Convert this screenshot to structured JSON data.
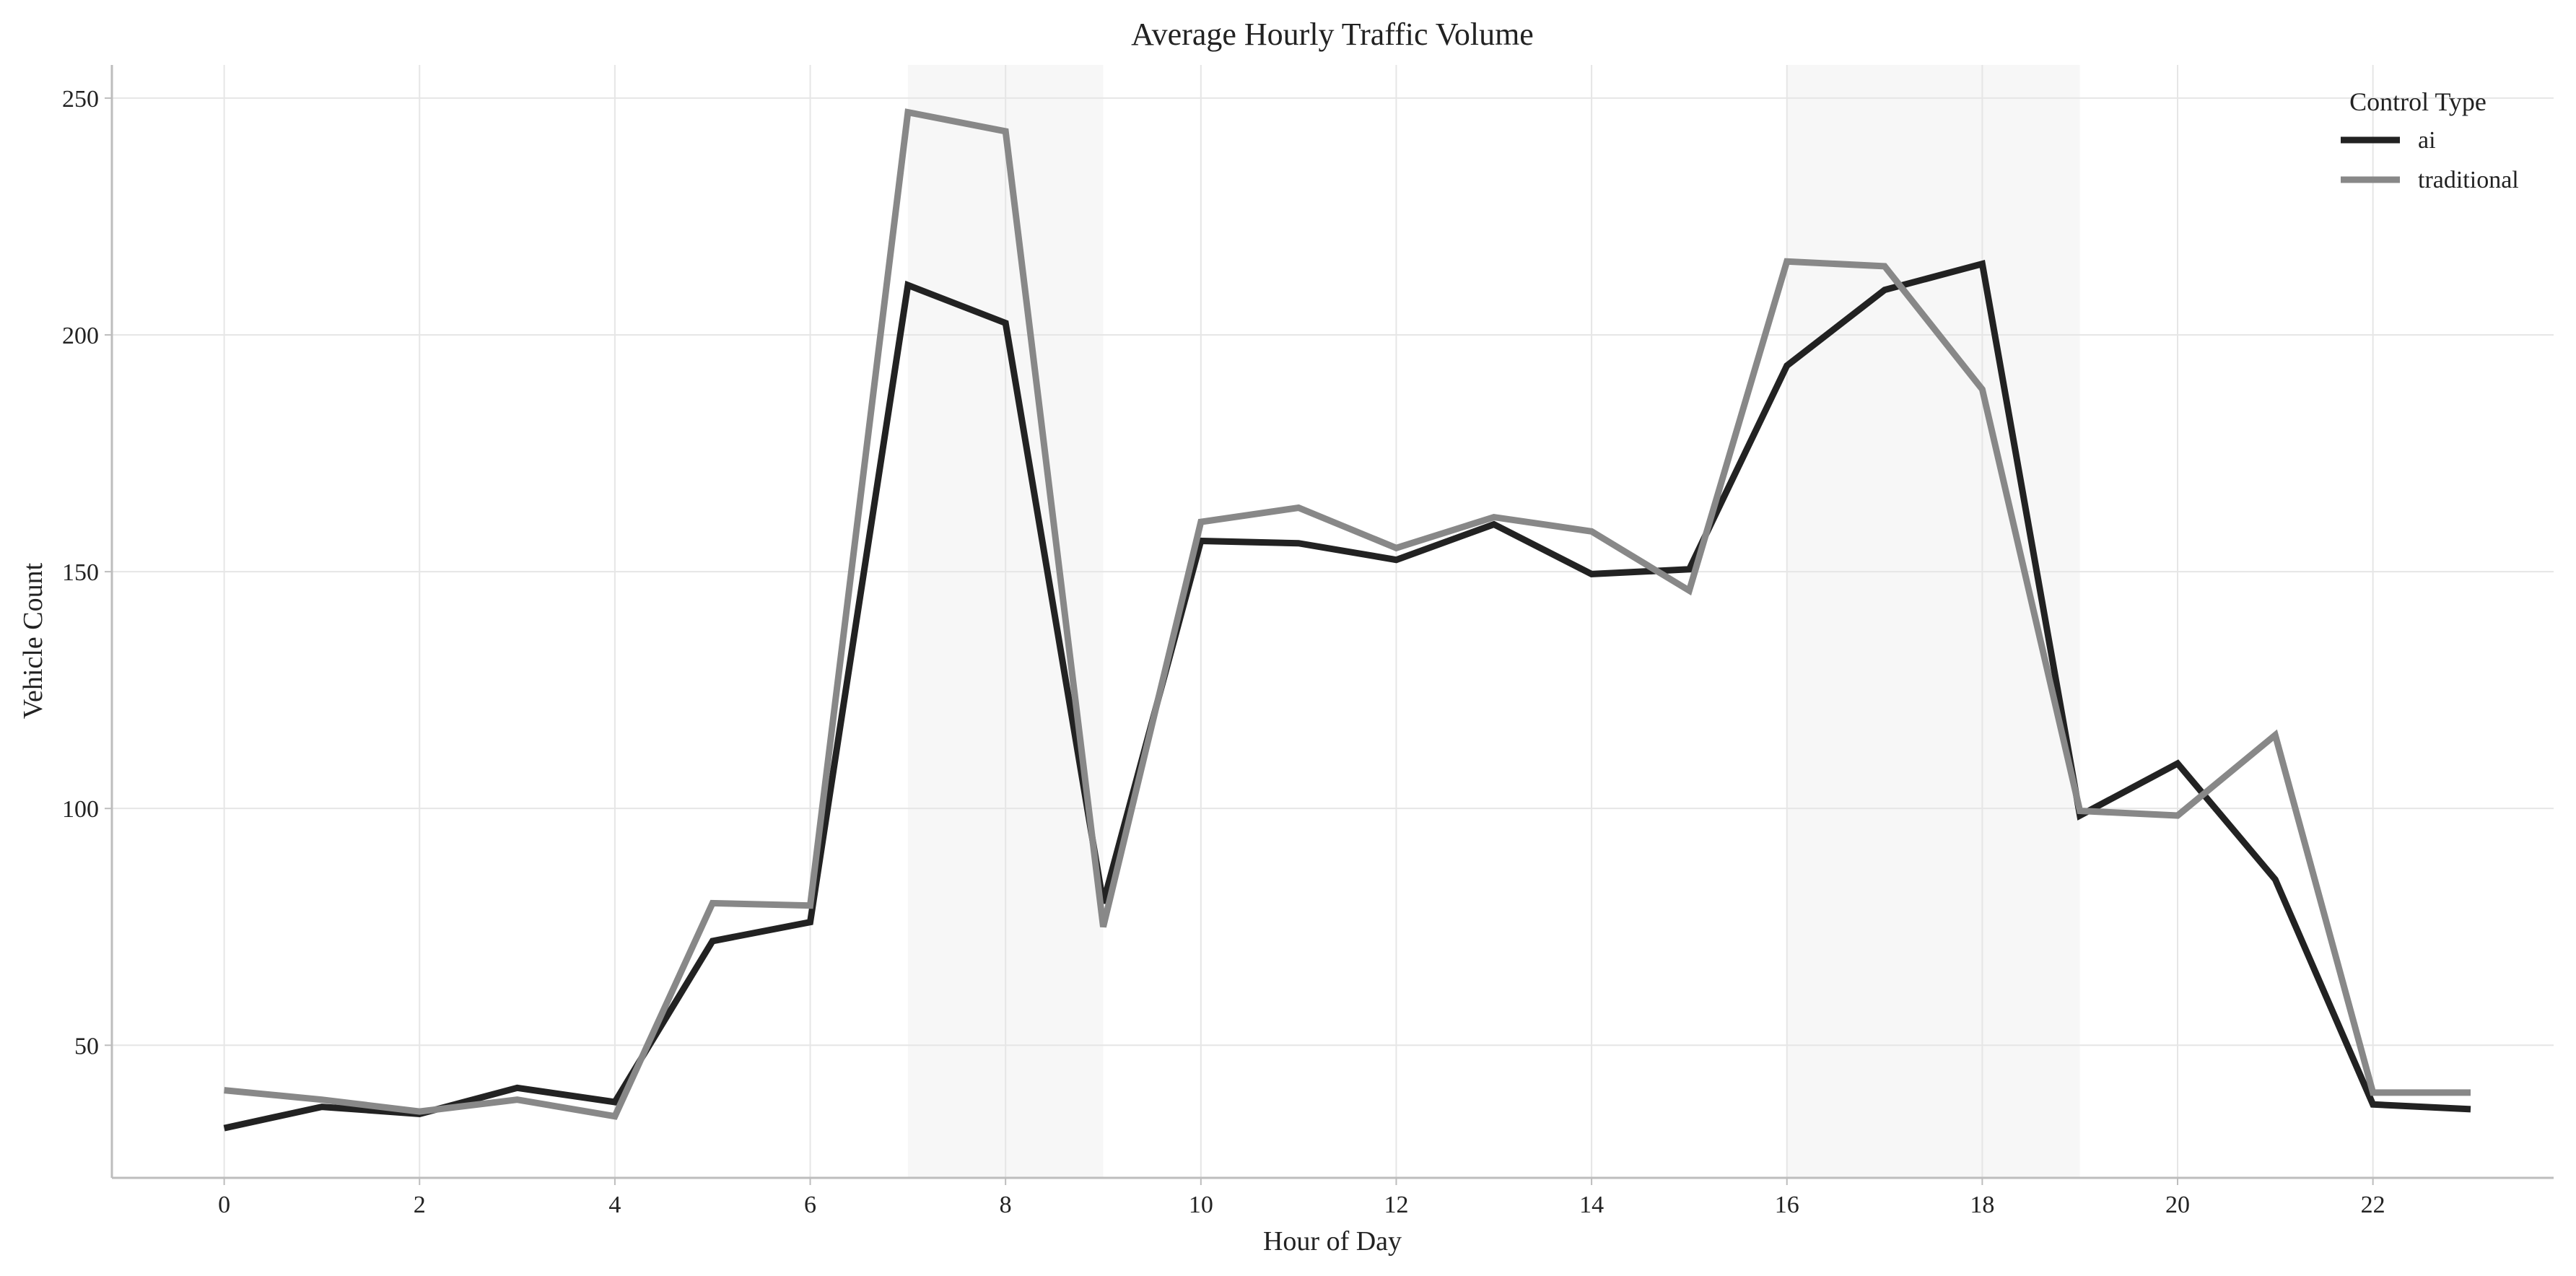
{
  "chart_data": {
    "type": "line",
    "title": "Average Hourly Traffic Volume",
    "xlabel": "Hour of Day",
    "ylabel": "Vehicle Count",
    "x": [
      0,
      1,
      2,
      3,
      4,
      5,
      6,
      7,
      8,
      9,
      10,
      11,
      12,
      13,
      14,
      15,
      16,
      17,
      18,
      19,
      20,
      21,
      22,
      23
    ],
    "x_ticks": [
      0,
      2,
      4,
      6,
      8,
      10,
      12,
      14,
      16,
      18,
      20,
      22
    ],
    "y_ticks": [
      50,
      100,
      150,
      200,
      250
    ],
    "xlim": [
      -1.15,
      23.85
    ],
    "ylim": [
      22,
      257
    ],
    "grid": true,
    "legend_position": "top-right",
    "legend_title": "Control Type",
    "shaded_ranges": [
      [
        7,
        9
      ],
      [
        16,
        19
      ]
    ],
    "series": [
      {
        "name": "ai",
        "color": "#222222",
        "values": [
          32.5,
          37,
          35.5,
          41,
          38,
          72,
          76,
          210.5,
          202.5,
          80,
          156.5,
          156,
          152.5,
          160,
          149.5,
          150.5,
          193.5,
          209.5,
          215,
          98.5,
          109.5,
          85,
          37.5,
          36.5
        ]
      },
      {
        "name": "traditional",
        "color": "#888888",
        "values": [
          40.5,
          38.5,
          36,
          38.5,
          35,
          80,
          79.5,
          247,
          243,
          75,
          160.5,
          163.5,
          155,
          161.5,
          158.5,
          146,
          215.5,
          214.5,
          188.5,
          99.5,
          98.5,
          115.5,
          40,
          40
        ]
      }
    ]
  }
}
